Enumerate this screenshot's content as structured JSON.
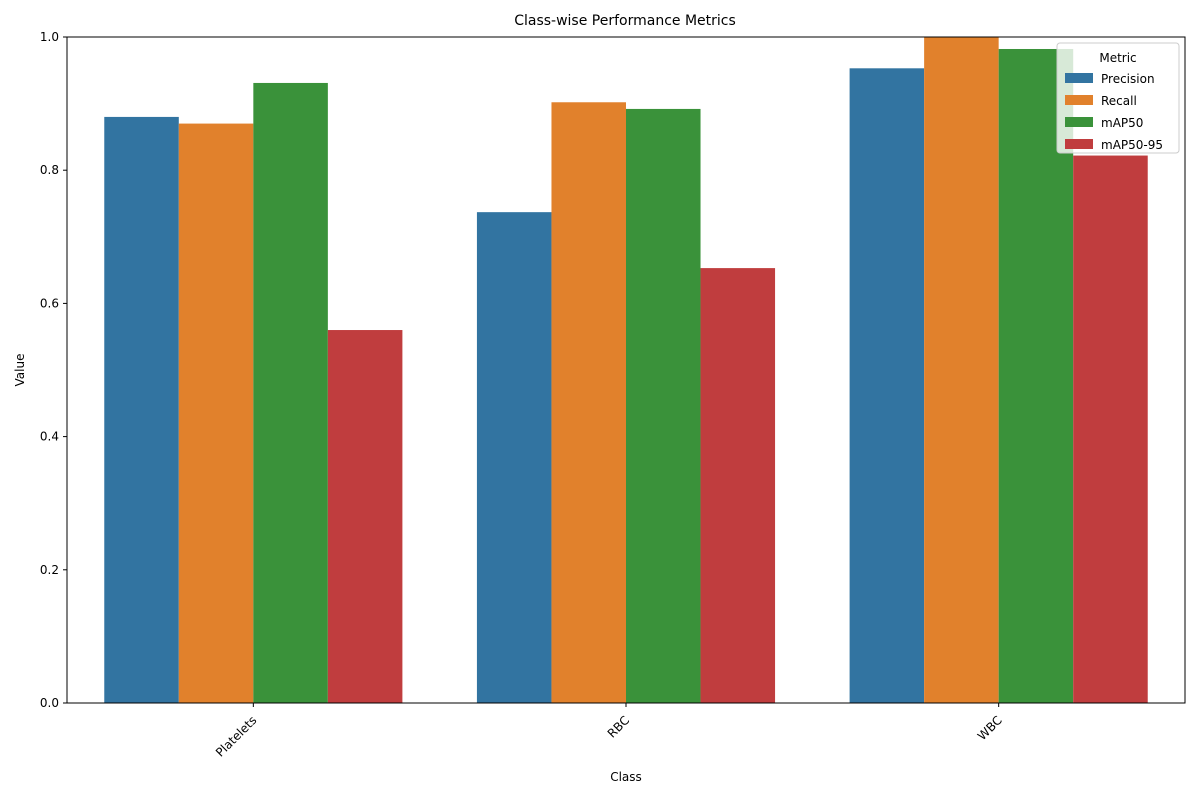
{
  "chart_data": {
    "type": "bar",
    "title": "Class-wise Performance Metrics",
    "xlabel": "Class",
    "ylabel": "Value",
    "categories": [
      "Platelets",
      "RBC",
      "WBC"
    ],
    "series": [
      {
        "name": "Precision",
        "values": [
          0.88,
          0.737,
          0.953
        ],
        "color": "#3274a1"
      },
      {
        "name": "Recall",
        "values": [
          0.87,
          0.902,
          1.0
        ],
        "color": "#e1812c"
      },
      {
        "name": "mAP50",
        "values": [
          0.931,
          0.892,
          0.982
        ],
        "color": "#3a923a"
      },
      {
        "name": "mAP50-95",
        "values": [
          0.56,
          0.653,
          0.822
        ],
        "color": "#c03d3e"
      }
    ],
    "ylim": [
      0,
      1.0
    ],
    "yticks": [
      "0.0",
      "0.2",
      "0.4",
      "0.6",
      "0.8",
      "1.0"
    ],
    "ytick_values": [
      0,
      0.2,
      0.4,
      0.6,
      0.8,
      1.0
    ],
    "legend": {
      "title": "Metric",
      "position": "top-right"
    },
    "grid": false
  }
}
